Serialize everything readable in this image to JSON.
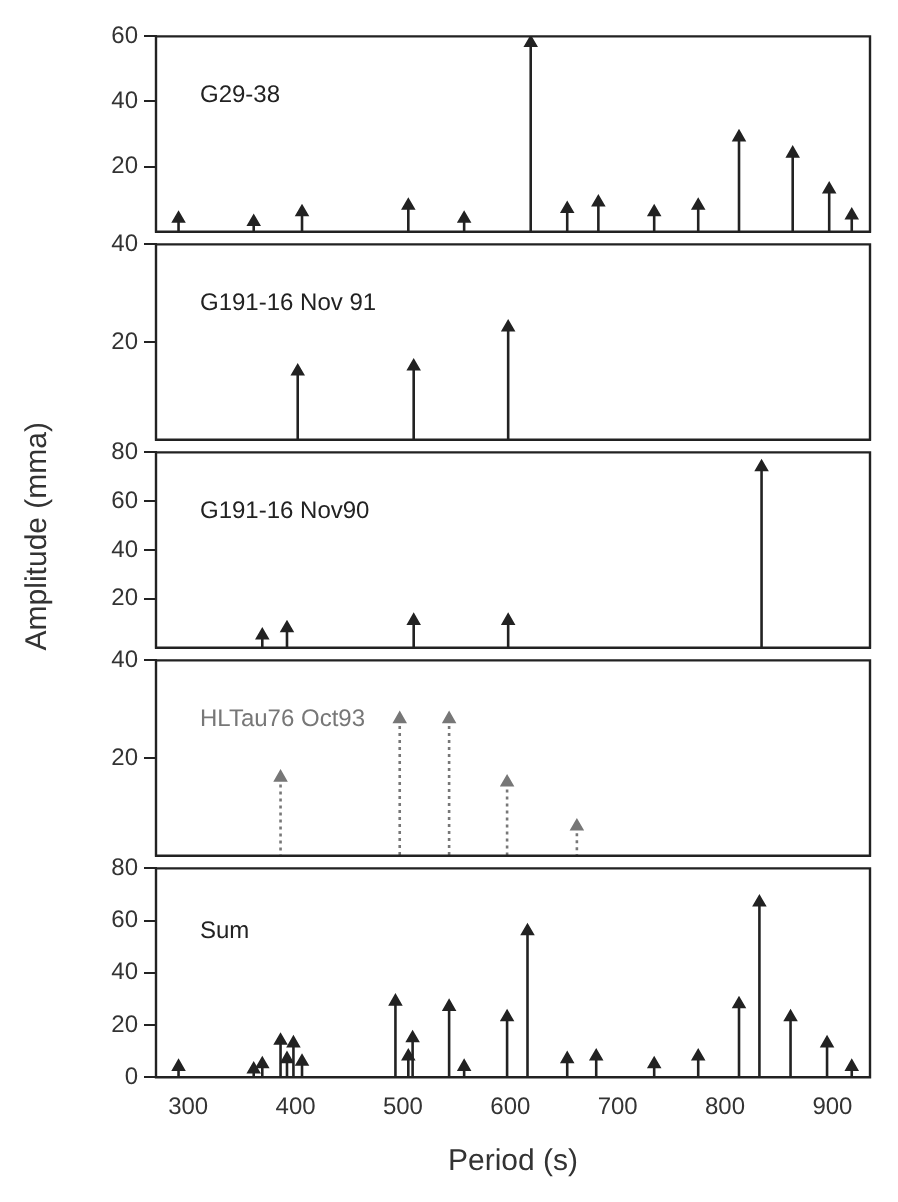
{
  "chart_data": [
    {
      "type": "lollipop",
      "title": "G29-38",
      "xlim": [
        270,
        935
      ],
      "xticks": [
        300,
        400,
        500,
        600,
        700,
        800,
        900
      ],
      "ylim": [
        0,
        60
      ],
      "yticks": [
        20,
        40,
        60
      ],
      "tick_labels": "y",
      "marker": "triangle",
      "line_style": "solid",
      "series": [
        {
          "color": "#222222",
          "x": [
            291,
            361,
            406,
            505,
            557,
            619,
            653,
            682,
            734,
            775,
            813,
            863,
            897,
            918
          ],
          "values": [
            4,
            3,
            6,
            8,
            4,
            58,
            7,
            9,
            6,
            8,
            29,
            24,
            13,
            5
          ]
        }
      ]
    },
    {
      "type": "lollipop",
      "title": "G191-16 Nov 91",
      "xlim": [
        270,
        935
      ],
      "xticks": [
        300,
        400,
        500,
        600,
        700,
        800,
        900
      ],
      "ylim": [
        0,
        40
      ],
      "yticks": [
        20,
        40
      ],
      "tick_labels": "y",
      "marker": "triangle",
      "line_style": "solid",
      "series": [
        {
          "color": "#222222",
          "x": [
            402,
            510,
            598
          ],
          "values": [
            14,
            15,
            23
          ]
        }
      ]
    },
    {
      "type": "lollipop",
      "title": "G191-16 Nov90",
      "ylabel": "Amplitude (mma)",
      "xlim": [
        270,
        935
      ],
      "xticks": [
        300,
        400,
        500,
        600,
        700,
        800,
        900
      ],
      "ylim": [
        0,
        80
      ],
      "yticks": [
        20,
        40,
        60,
        80
      ],
      "tick_labels": "y",
      "marker": "triangle",
      "line_style": "solid",
      "series": [
        {
          "color": "#222222",
          "x": [
            369,
            392,
            510,
            598,
            834
          ],
          "values": [
            5,
            8,
            11,
            11,
            74
          ]
        }
      ]
    },
    {
      "type": "lollipop",
      "title": "HLTau76 Oct93",
      "xlim": [
        270,
        935
      ],
      "xticks": [
        300,
        400,
        500,
        600,
        700,
        800,
        900
      ],
      "ylim": [
        0,
        40
      ],
      "yticks": [
        20,
        40
      ],
      "tick_labels": "y",
      "marker": "triangle",
      "line_style": "dotted",
      "series": [
        {
          "color": "#777777",
          "x": [
            386,
            497,
            543,
            597,
            662
          ],
          "values": [
            16,
            28,
            28,
            15,
            6
          ]
        }
      ]
    },
    {
      "type": "lollipop",
      "title": "Sum",
      "xlabel": "Period (s)",
      "xlim": [
        270,
        935
      ],
      "xticks": [
        300,
        400,
        500,
        600,
        700,
        800,
        900
      ],
      "ylim": [
        0,
        80
      ],
      "yticks": [
        0,
        20,
        40,
        60,
        80
      ],
      "marker": "triangle",
      "line_style": "solid",
      "series": [
        {
          "color": "#222222",
          "x": [
            291,
            361,
            369,
            386,
            392,
            398,
            406,
            493,
            505,
            509,
            543,
            557,
            597,
            616,
            653,
            680,
            734,
            775,
            813,
            832,
            861,
            895,
            918
          ],
          "values": [
            4,
            3,
            5,
            14,
            7,
            13,
            6,
            29,
            8,
            15,
            27,
            4,
            23,
            56,
            7,
            8,
            5,
            8,
            28,
            67,
            23,
            13,
            4
          ]
        }
      ]
    }
  ]
}
